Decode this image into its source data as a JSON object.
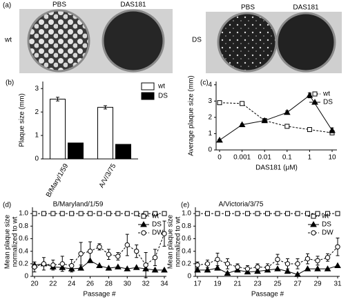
{
  "panel_a": {
    "label": "(a)",
    "columns_left": [
      "PBS",
      "DAS181"
    ],
    "row_left": "wt",
    "columns_right": [
      "PBS",
      "DAS181"
    ],
    "row_right": "DS"
  },
  "chart_data": [
    {
      "type": "bar",
      "panel": "(b)",
      "ylabel": "Plaque size (mm)",
      "categories": [
        "B/Mary/1/59",
        "A/V/3/75"
      ],
      "series": [
        {
          "name": "wt",
          "color": "#ffffff",
          "values": [
            2.55,
            2.2
          ],
          "errors": [
            0.08,
            0.07
          ]
        },
        {
          "name": "DS",
          "color": "#000000",
          "values": [
            0.68,
            0.62
          ]
        }
      ],
      "ylim": [
        0,
        3.3
      ],
      "yticks": [
        0,
        1,
        2,
        3
      ]
    },
    {
      "type": "line",
      "panel": "(c)",
      "xlabel": "DAS181 (μM)",
      "ylabel": "Average plaque size (mm)",
      "categories": [
        "0",
        "0.001",
        "0.01",
        "0.1",
        "1",
        "10"
      ],
      "series": [
        {
          "name": "wt",
          "color": "#000000",
          "marker": "square",
          "marker_fill": "#ffffff",
          "dashed": true,
          "values": [
            2.9,
            2.85,
            1.8,
            1.45,
            1.25,
            1.05
          ],
          "errors": [
            0.1,
            0.1,
            0.08,
            0.05,
            0.05,
            0.1
          ]
        },
        {
          "name": "DS",
          "color": "#000000",
          "marker": "triangle",
          "marker_fill": "#000000",
          "dashed": false,
          "values": [
            0.6,
            1.55,
            1.8,
            2.3,
            3.35,
            1.2
          ],
          "errors": [
            0.05,
            0.05,
            0.1,
            0.1,
            0.15,
            0.15
          ]
        }
      ],
      "ylim": [
        0,
        4.2
      ],
      "yticks": [
        0,
        1,
        2,
        3,
        4
      ]
    },
    {
      "type": "line",
      "panel": "(d)",
      "title": "B/Maryland/1/59",
      "xlabel": "Passage #",
      "ylabel": [
        "Mean plaque size",
        "normalized to wt"
      ],
      "x": [
        20,
        21,
        22,
        23,
        24,
        25,
        26,
        27,
        28,
        29,
        30,
        31,
        32,
        33,
        34
      ],
      "xlim": [
        20,
        34
      ],
      "xticks": [
        20,
        22,
        24,
        26,
        28,
        30,
        32,
        34
      ],
      "ylim": [
        0,
        1.1
      ],
      "yticks": [
        0,
        0.2,
        0.4,
        0.6,
        0.8,
        {
          "value": 1,
          "label": "1.0"
        }
      ],
      "series": [
        {
          "name": "wt",
          "color": "#000000",
          "marker": "square",
          "marker_fill": "#ffffff",
          "dashed": true,
          "values": [
            1,
            1,
            1,
            1,
            1,
            1,
            1,
            1,
            1,
            1,
            1,
            1,
            1,
            1,
            1
          ]
        },
        {
          "name": "DS",
          "color": "#000000",
          "marker": "triangle",
          "marker_fill": "#000000",
          "dashed": false,
          "values": [
            0.18,
            0.2,
            0.15,
            0.14,
            0.12,
            0.13,
            0.25,
            0.17,
            0.13,
            0.15,
            0.12,
            0.14,
            0.12,
            0.1,
            0.1
          ]
        },
        {
          "name": "DW",
          "color": "#000000",
          "marker": "circle",
          "marker_fill": "#ffffff",
          "dashed": true,
          "values": [
            0.15,
            0.2,
            0.18,
            0.2,
            0.17,
            0.36,
            0.4,
            0.47,
            0.35,
            0.32,
            0.5,
            0.4,
            0.18,
            0.3,
            0.68
          ],
          "errors": [
            0.08,
            0.1,
            0.08,
            0.12,
            0.1,
            0.18,
            0.15,
            0.05,
            0.08,
            0.06,
            0.17,
            0.1,
            0.2,
            0.13,
            0.2
          ]
        }
      ]
    },
    {
      "type": "line",
      "panel": "(e)",
      "title": "A/Victoria/3/75",
      "xlabel": "Passage #",
      "ylabel": [
        "Mean plaque size",
        "normalized to wt"
      ],
      "x": [
        17,
        18,
        19,
        20,
        21,
        22,
        23,
        24,
        25,
        26,
        27,
        28,
        29,
        30,
        31
      ],
      "xlim": [
        17,
        31
      ],
      "xticks": [
        17,
        19,
        21,
        23,
        25,
        27,
        29,
        31
      ],
      "ylim": [
        0,
        1.1
      ],
      "yticks": [
        0,
        0.2,
        0.4,
        0.6,
        0.8,
        {
          "value": 1,
          "label": "1.0"
        }
      ],
      "series": [
        {
          "name": "wt",
          "color": "#000000",
          "marker": "square",
          "marker_fill": "#ffffff",
          "dashed": true,
          "values": [
            1,
            1,
            1,
            1,
            1,
            1,
            1,
            1,
            1,
            1,
            1,
            1,
            1,
            1,
            1
          ]
        },
        {
          "name": "DS",
          "color": "#000000",
          "marker": "triangle",
          "marker_fill": "#000000",
          "dashed": false,
          "values": [
            0.1,
            0.1,
            0.13,
            0.05,
            0.1,
            0.07,
            0.08,
            0.1,
            0.12,
            0.08,
            0.03,
            0.12,
            0.12,
            0.12,
            0.17
          ]
        },
        {
          "name": "DW",
          "color": "#000000",
          "marker": "circle",
          "marker_fill": "#ffffff",
          "dashed": true,
          "values": [
            0.18,
            0.2,
            0.27,
            0.2,
            0.15,
            0.12,
            0.15,
            0.14,
            0.27,
            0.2,
            0.2,
            0.28,
            0.25,
            0.3,
            0.47
          ],
          "errors": [
            0.05,
            0.06,
            0.1,
            0.08,
            0.05,
            0.05,
            0.05,
            0.06,
            0.08,
            0.08,
            0.08,
            0.08,
            0.07,
            0.06,
            0.14
          ]
        }
      ]
    }
  ]
}
